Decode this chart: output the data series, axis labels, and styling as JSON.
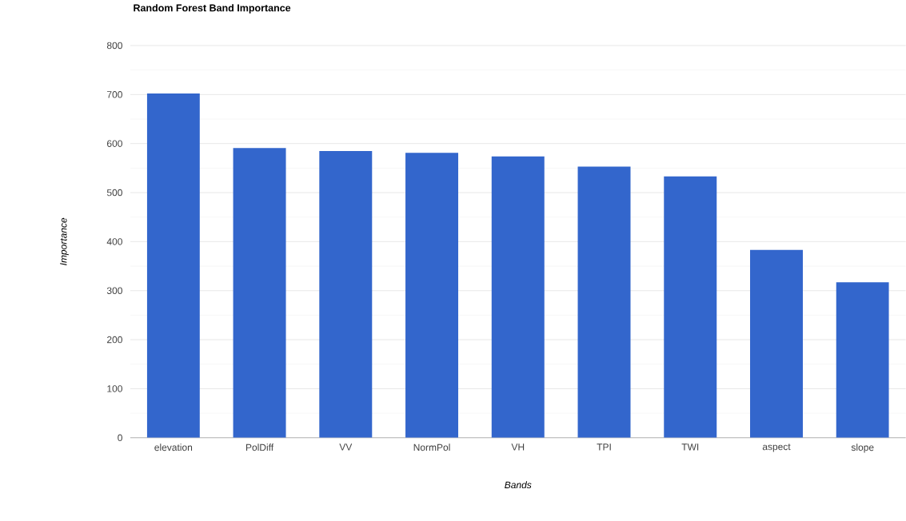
{
  "chart_data": {
    "type": "bar",
    "title": "Random Forest Band Importance",
    "xlabel": "Bands",
    "ylabel": "Importance",
    "categories": [
      "elevation",
      "PolDiff",
      "VV",
      "NormPol",
      "VH",
      "TPI",
      "TWI",
      "aspect",
      "slope"
    ],
    "values": [
      702,
      591,
      585,
      581,
      574,
      553,
      533,
      383,
      317
    ],
    "color": "#3366cc",
    "ylim": [
      0,
      800
    ],
    "yticks": [
      0,
      100,
      200,
      300,
      400,
      500,
      600,
      700,
      800
    ],
    "grid": "y",
    "legend": false
  }
}
